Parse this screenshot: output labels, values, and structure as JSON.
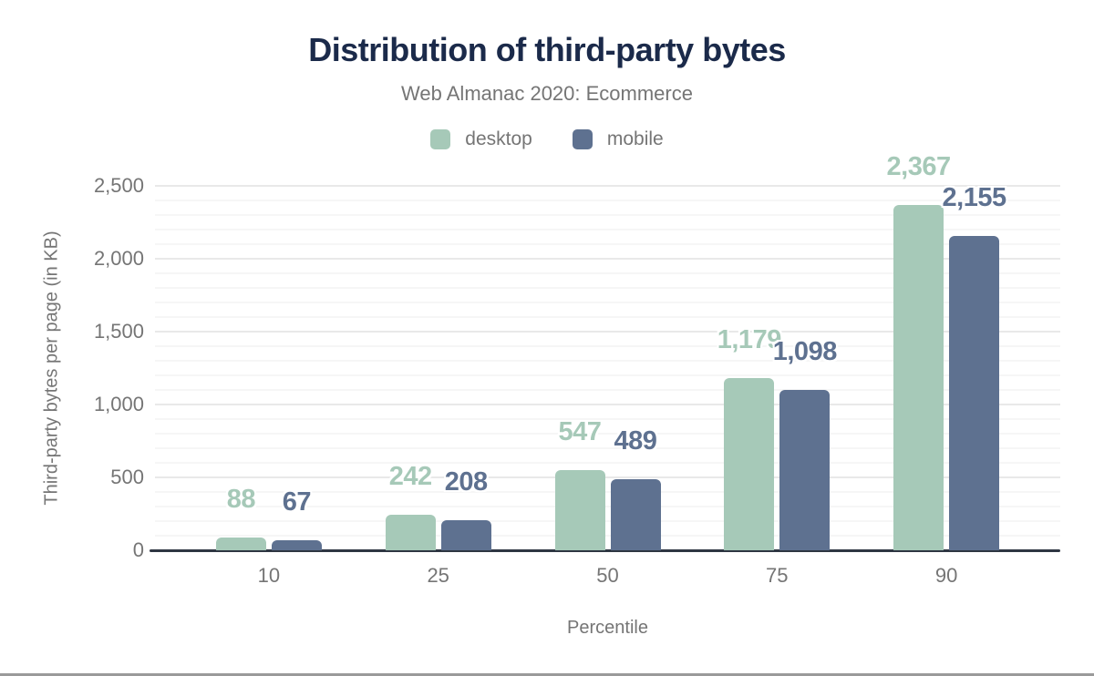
{
  "colors": {
    "desktop": "#a6c9b8",
    "mobile": "#5e7190",
    "title_navy": "#1b2a4a",
    "muted": "#757575",
    "axis": "#2e3642",
    "grid_major": "#e9e9e9",
    "grid_minor": "#f6f6f6",
    "halo": "#ffffff",
    "bottom_border": "#9a9a9a"
  },
  "chart_data": {
    "type": "bar",
    "title": "Distribution of third-party bytes",
    "subtitle": "Web Almanac 2020: Ecommerce",
    "categories": [
      "10",
      "25",
      "50",
      "75",
      "90"
    ],
    "series": [
      {
        "name": "desktop",
        "color": "#a6c9b8",
        "values": [
          88,
          242,
          547,
          1179,
          2367
        ],
        "labels": [
          "88",
          "242",
          "547",
          "1,179",
          "2,367"
        ]
      },
      {
        "name": "mobile",
        "color": "#5e7190",
        "values": [
          67,
          208,
          489,
          1098,
          2155
        ],
        "labels": [
          "67",
          "208",
          "489",
          "1,098",
          "2,155"
        ]
      }
    ],
    "xlabel": "Percentile",
    "ylabel": "Third-party bytes per page (in KB)",
    "ylim": [
      0,
      2500
    ],
    "y_ticks": [
      0,
      500,
      1000,
      1500,
      2000,
      2500
    ],
    "y_tick_labels": [
      "0",
      "500",
      "1,000",
      "1,500",
      "2,000",
      "2,500"
    ],
    "minor_grid_step": 100,
    "grid": true,
    "legend_position": "top"
  }
}
